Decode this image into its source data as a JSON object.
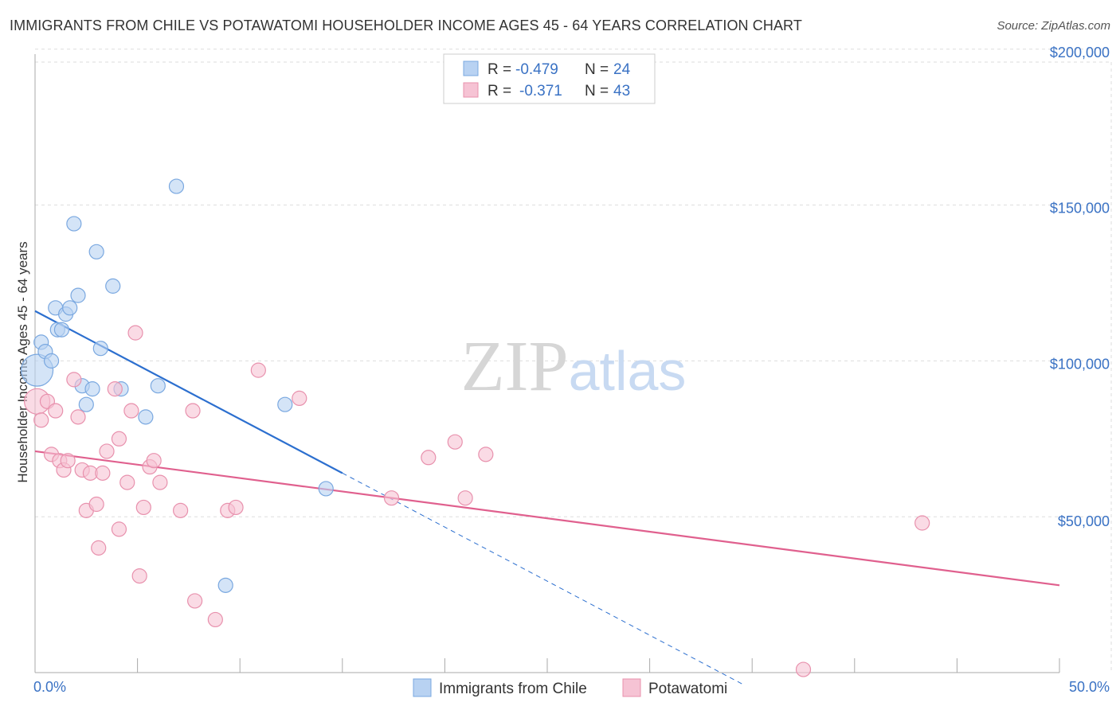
{
  "chart_data": {
    "type": "scatter",
    "title": "IMMIGRANTS FROM CHILE VS POTAWATOMI HOUSEHOLDER INCOME AGES 45 - 64 YEARS CORRELATION CHART",
    "source": "Source: ZipAtlas.com",
    "ylabel": "Householder Income Ages 45 - 64 years",
    "xlabel": "",
    "xlim": [
      0,
      50
    ],
    "ylim": [
      0,
      200000
    ],
    "x_tick_labels": [
      "0.0%",
      "50.0%"
    ],
    "y_ticks": [
      50000,
      100000,
      150000,
      200000
    ],
    "y_tick_labels": [
      "$50,000",
      "$100,000",
      "$150,000",
      "$200,000"
    ],
    "watermark": "ZIPatlas",
    "legend": {
      "entries": [
        {
          "r_label": "R =",
          "r": "-0.479",
          "n_label": "N =",
          "n": "24"
        },
        {
          "r_label": "R =",
          "r": "-0.371",
          "n_label": "N =",
          "n": "43"
        }
      ]
    },
    "series": [
      {
        "name": "Immigrants from Chile",
        "color": "#7aa8e0",
        "fill": "#b8d2f2",
        "trend_color": "#2c6fcf",
        "trend": {
          "x0": 0,
          "y0": 116000,
          "x1": 15,
          "y1": 64000,
          "dash_to_x": 34.5
        },
        "points": [
          [
            0.1,
            97000
          ],
          [
            0.3,
            106000
          ],
          [
            0.5,
            103000
          ],
          [
            0.8,
            100000
          ],
          [
            1.0,
            117000
          ],
          [
            1.1,
            110000
          ],
          [
            1.3,
            110000
          ],
          [
            1.5,
            115000
          ],
          [
            1.7,
            117000
          ],
          [
            1.9,
            144000
          ],
          [
            2.1,
            121000
          ],
          [
            2.3,
            92000
          ],
          [
            2.5,
            86000
          ],
          [
            2.8,
            91000
          ],
          [
            3.0,
            135000
          ],
          [
            3.2,
            104000
          ],
          [
            3.8,
            124000
          ],
          [
            4.2,
            91000
          ],
          [
            5.4,
            82000
          ],
          [
            6.0,
            92000
          ],
          [
            6.9,
            156000
          ],
          [
            9.3,
            28000
          ],
          [
            12.2,
            86000
          ],
          [
            14.2,
            59000
          ]
        ]
      },
      {
        "name": "Potawatomi",
        "color": "#e891ad",
        "fill": "#f6c3d4",
        "trend_color": "#e0608e",
        "trend": {
          "x0": 0,
          "y0": 71000,
          "x1": 50,
          "y1": 28000
        },
        "points": [
          [
            0.1,
            87000
          ],
          [
            0.3,
            81000
          ],
          [
            0.6,
            87000
          ],
          [
            0.8,
            70000
          ],
          [
            1.0,
            84000
          ],
          [
            1.2,
            68000
          ],
          [
            1.4,
            65000
          ],
          [
            1.6,
            68000
          ],
          [
            1.9,
            94000
          ],
          [
            2.1,
            82000
          ],
          [
            2.3,
            65000
          ],
          [
            2.5,
            52000
          ],
          [
            2.7,
            64000
          ],
          [
            3.0,
            54000
          ],
          [
            3.1,
            40000
          ],
          [
            3.3,
            64000
          ],
          [
            3.5,
            71000
          ],
          [
            3.9,
            91000
          ],
          [
            4.1,
            75000
          ],
          [
            4.1,
            46000
          ],
          [
            4.5,
            61000
          ],
          [
            4.7,
            84000
          ],
          [
            4.9,
            109000
          ],
          [
            5.1,
            31000
          ],
          [
            5.3,
            53000
          ],
          [
            5.6,
            66000
          ],
          [
            5.8,
            68000
          ],
          [
            6.1,
            61000
          ],
          [
            7.1,
            52000
          ],
          [
            7.7,
            84000
          ],
          [
            7.8,
            23000
          ],
          [
            8.8,
            17000
          ],
          [
            9.4,
            52000
          ],
          [
            9.8,
            53000
          ],
          [
            10.9,
            97000
          ],
          [
            12.9,
            88000
          ],
          [
            17.4,
            56000
          ],
          [
            19.2,
            69000
          ],
          [
            20.5,
            74000
          ],
          [
            21.0,
            56000
          ],
          [
            22.0,
            70000
          ],
          [
            37.5,
            1000
          ],
          [
            43.3,
            48000
          ]
        ]
      }
    ]
  }
}
